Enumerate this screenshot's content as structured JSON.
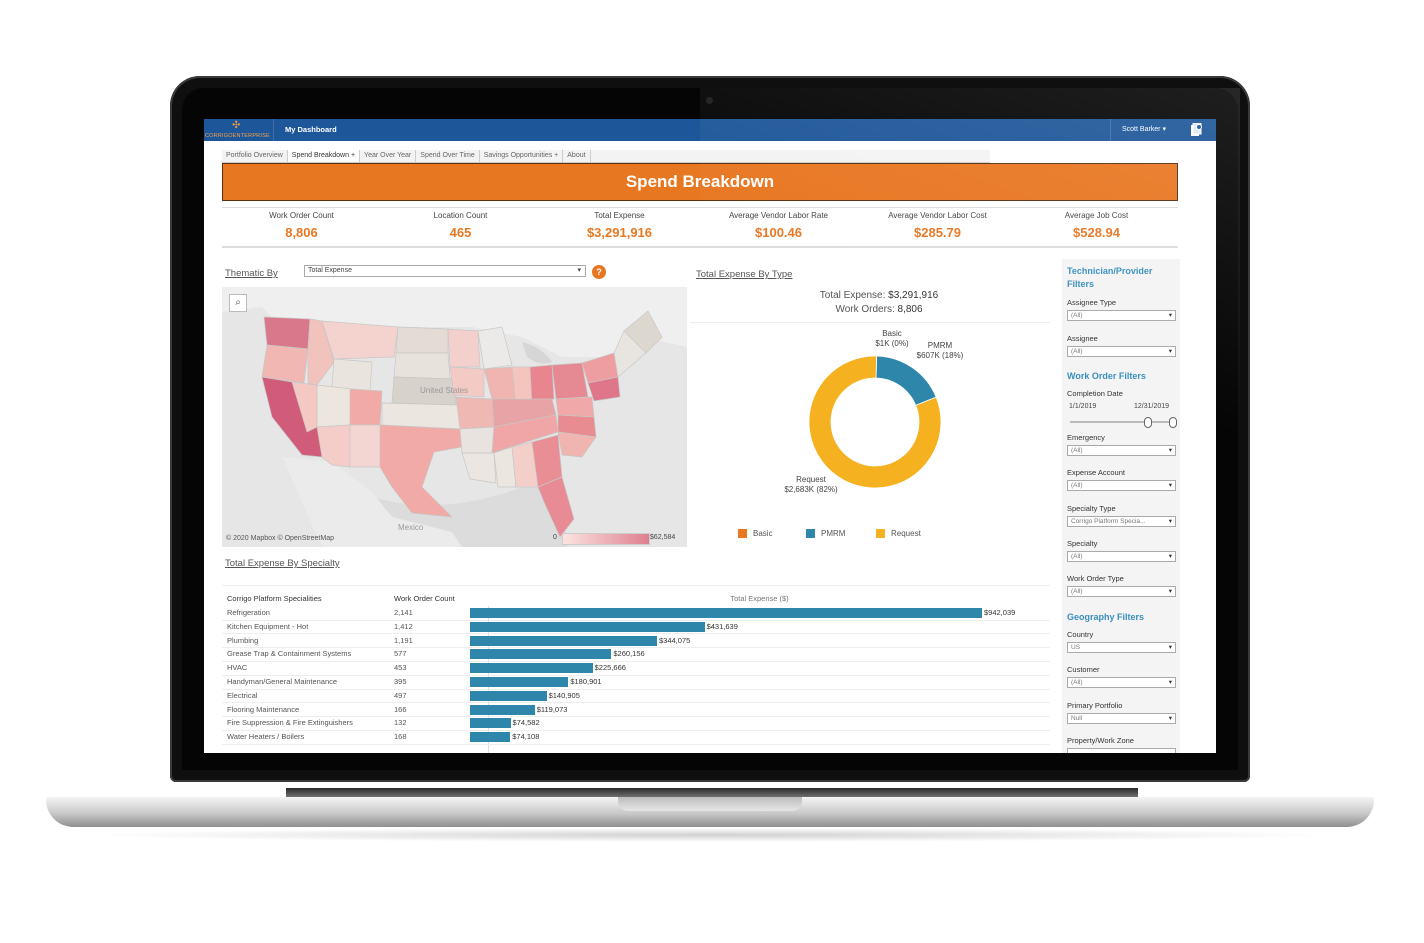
{
  "topbar": {
    "logo_text": "CORRIGOENTERPRISE",
    "logo_symbol": "✣",
    "dashboard_label": "My Dashboard",
    "user_name": "Scott Barker",
    "user_caret": "▾",
    "notification_icon": "document-icon"
  },
  "tabs": [
    {
      "label": "Portfolio Overview"
    },
    {
      "label": "Spend Breakdown +"
    },
    {
      "label": "Year Over Year"
    },
    {
      "label": "Spend Over Time"
    },
    {
      "label": "Savings Opportunities +"
    },
    {
      "label": "About"
    }
  ],
  "banner": {
    "title": "Spend Breakdown"
  },
  "kpis": [
    {
      "label": "Work Order Count",
      "value": "8,806"
    },
    {
      "label": "Location Count",
      "value": "465"
    },
    {
      "label": "Total Expense",
      "value": "$3,291,916"
    },
    {
      "label": "Average Vendor Labor Rate",
      "value": "$100.46"
    },
    {
      "label": "Average Vendor Labor Cost",
      "value": "$285.79"
    },
    {
      "label": "Average Job Cost",
      "value": "$528.94"
    }
  ],
  "map": {
    "thematic_label": "Thematic By",
    "thematic_value": "Total Expense",
    "help_label": "?",
    "attribution": "© 2020 Mapbox © OpenStreetMap",
    "country_label": "United States",
    "mexico_label": "Mexico",
    "legend_min": "0",
    "legend_max": "$62,584"
  },
  "donut": {
    "title": "Total Expense By Type",
    "total_expense_label": "Total Expense:",
    "total_expense_value": "$3,291,916",
    "work_orders_label": "Work Orders:",
    "work_orders_value": "8,806",
    "labels": {
      "basic": "Basic\n$1K (0%)",
      "pmrm": "PMRM\n$607K (18%)",
      "request": "Request\n$2,683K (82%)"
    }
  },
  "chart_data": {
    "type": "pie",
    "title": "Total Expense By Type",
    "categories": [
      "Basic",
      "PMRM",
      "Request"
    ],
    "values": [
      1,
      607,
      2683
    ],
    "value_unit": "$K",
    "colors": [
      "#e87722",
      "#2e86ab",
      "#f5b120"
    ],
    "legend": [
      "Basic",
      "PMRM",
      "Request"
    ]
  },
  "specialty": {
    "title": "Total Expense By Specialty",
    "col_name": "Corrigo Platform Specialities",
    "col_count": "Work Order Count",
    "col_expense": "Total Expense ($)",
    "bar_color": "#2e86ab",
    "max_value": 942039,
    "rows": [
      {
        "name": "Refrigeration",
        "count": "2,141",
        "value": 942039,
        "label": "$942,039"
      },
      {
        "name": "Kitchen Equipment - Hot",
        "count": "1,412",
        "value": 431639,
        "label": "$431,639"
      },
      {
        "name": "Plumbing",
        "count": "1,191",
        "value": 344075,
        "label": "$344,075"
      },
      {
        "name": "Grease Trap & Containment Systems",
        "count": "577",
        "value": 260156,
        "label": "$260,156"
      },
      {
        "name": "HVAC",
        "count": "453",
        "value": 225666,
        "label": "$225,666"
      },
      {
        "name": "Handyman/General Maintenance",
        "count": "395",
        "value": 180901,
        "label": "$180,901"
      },
      {
        "name": "Electrical",
        "count": "497",
        "value": 140905,
        "label": "$140,905"
      },
      {
        "name": "Flooring Maintenance",
        "count": "166",
        "value": 119073,
        "label": "$119,073"
      },
      {
        "name": "Fire Suppression & Fire Extinguishers",
        "count": "132",
        "value": 74582,
        "label": "$74,582"
      },
      {
        "name": "Water Heaters / Boilers",
        "count": "168",
        "value": 74108,
        "label": "$74,108"
      }
    ]
  },
  "filters": {
    "tech_header": "Technician/Provider Filters",
    "assignee_type_label": "Assignee Type",
    "assignee_type_value": "(All)",
    "assignee_label": "Assignee",
    "assignee_value": "(All)",
    "wo_header": "Work Order Filters",
    "completion_label": "Completion Date",
    "date_from": "1/1/2019",
    "date_to": "12/31/2019",
    "emergency_label": "Emergency",
    "emergency_value": "(All)",
    "expense_account_label": "Expense Account",
    "expense_account_value": "(All)",
    "specialty_type_label": "Specialty Type",
    "specialty_type_value": "Corrigo Platform Specia...",
    "specialty_label": "Specialty",
    "specialty_value": "(All)",
    "wo_type_label": "Work Order Type",
    "wo_type_value": "(All)",
    "geo_header": "Geography Filters",
    "country_label": "Country",
    "country_value": "US",
    "customer_label": "Customer",
    "customer_value": "(All)",
    "primary_portfolio_label": "Primary Portfolio",
    "primary_portfolio_value": "Null",
    "property_label": "Property/Work Zone",
    "dropdown_arrow": "▾"
  }
}
